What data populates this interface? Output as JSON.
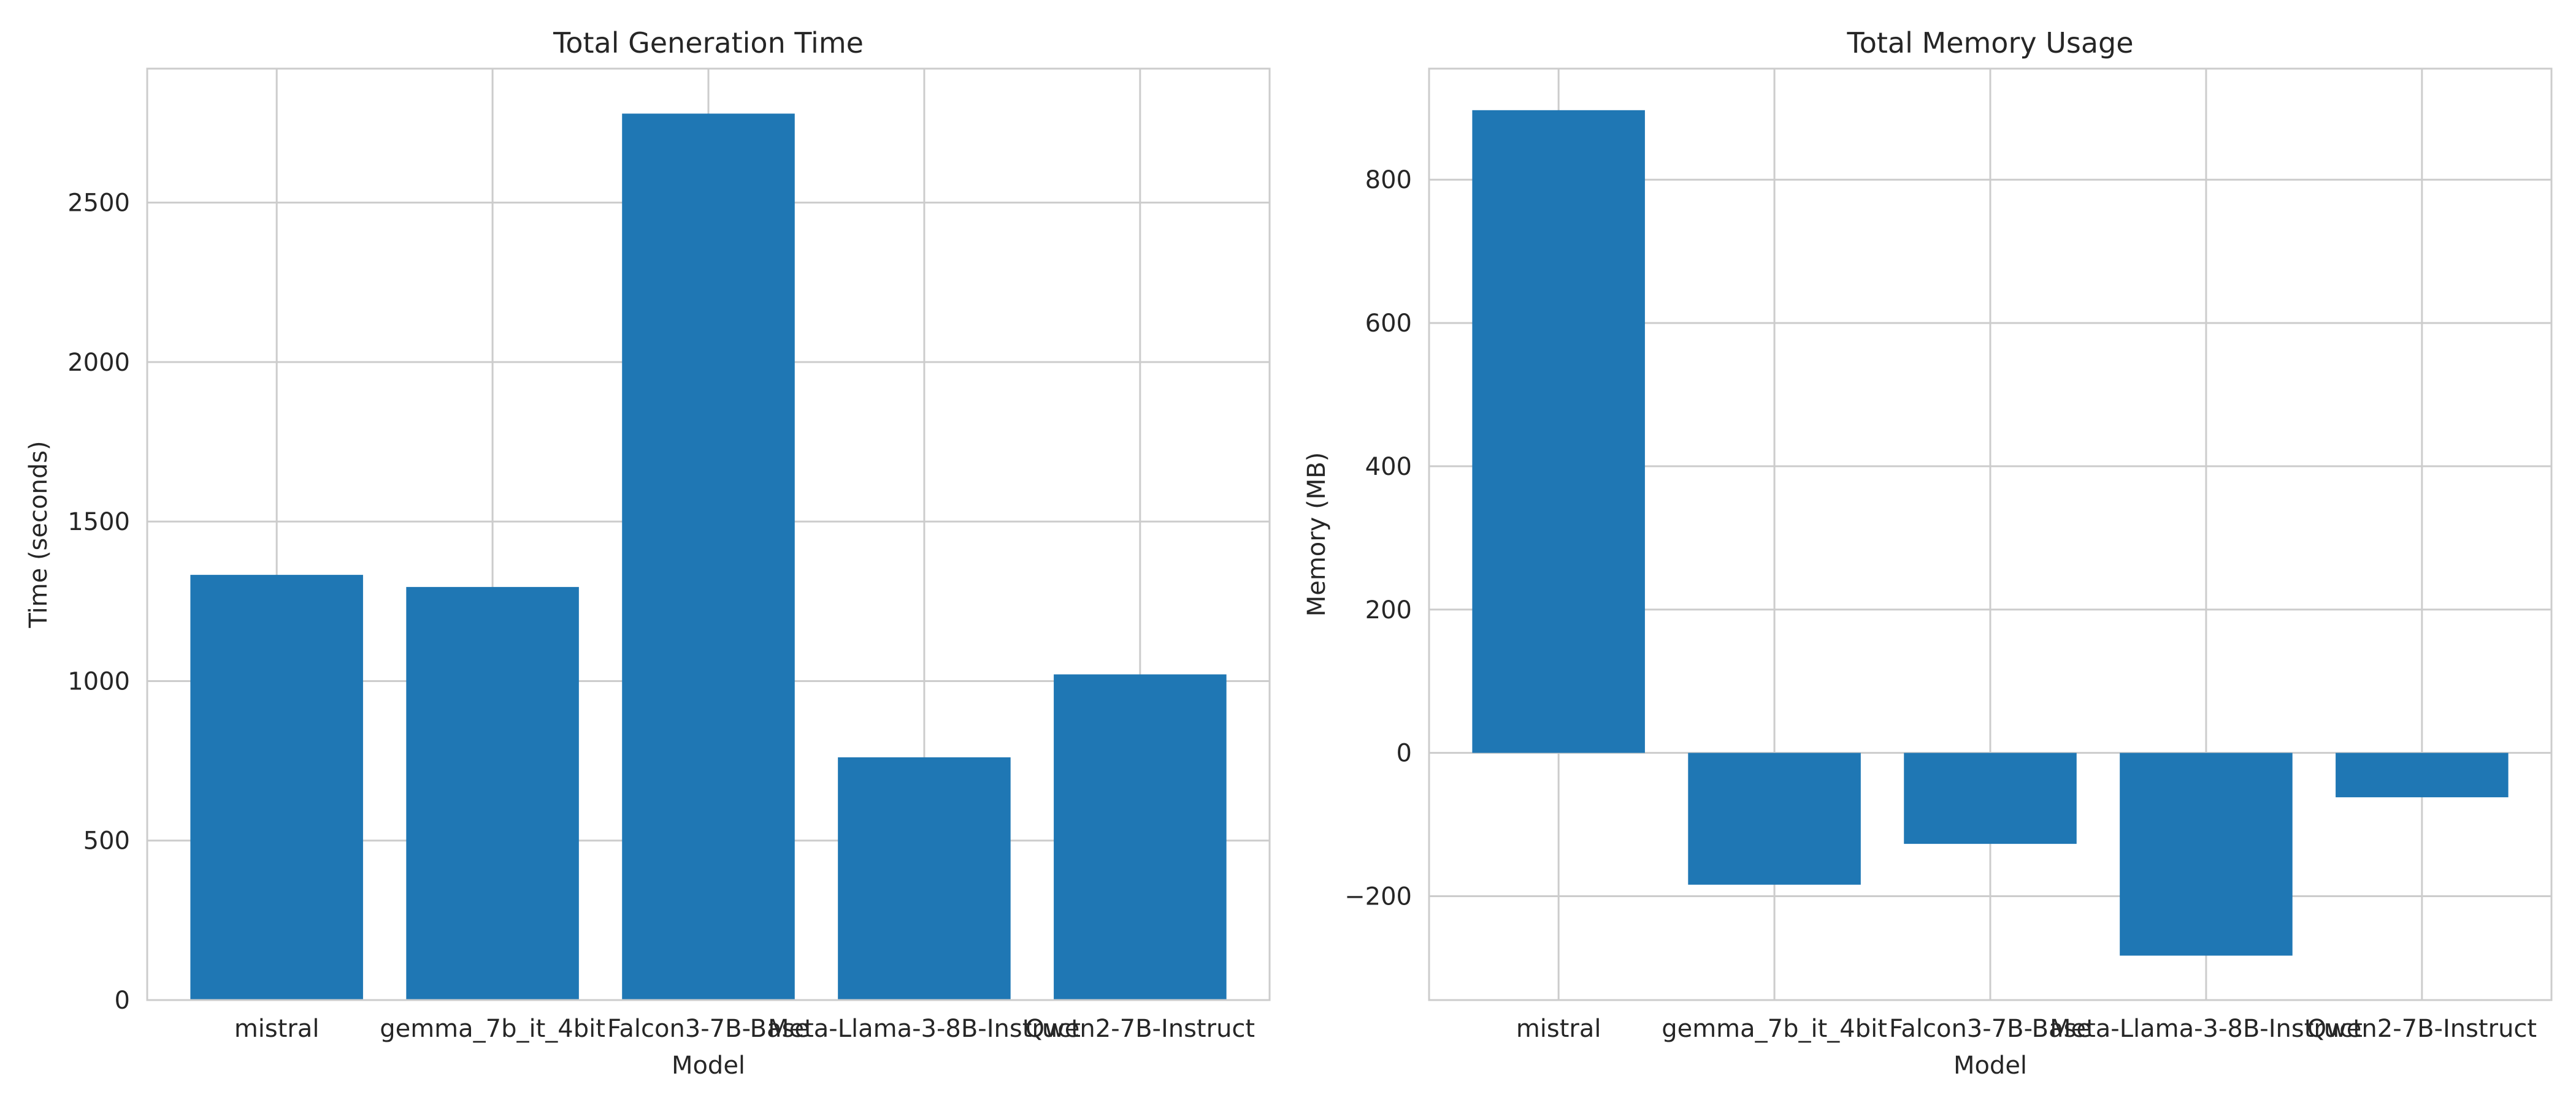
{
  "chart_data": [
    {
      "type": "bar",
      "title": "Total Generation Time",
      "xlabel": "Model",
      "ylabel": "Time (seconds)",
      "categories": [
        "mistral",
        "gemma_7b_it_4bit",
        "Falcon3-7B-Base",
        "Meta-Llama-3-8B-Instruct",
        "Qwen2-7B-Instruct"
      ],
      "values": [
        1333,
        1295,
        2779,
        761,
        1021
      ],
      "ylim": [
        0,
        2920
      ],
      "yticks": [
        0,
        500,
        1000,
        1500,
        2000,
        2500
      ],
      "grid": true,
      "legend": "none",
      "bar_color": "#1f77b4"
    },
    {
      "type": "bar",
      "title": "Total Memory Usage",
      "xlabel": "Model",
      "ylabel": "Memory (MB)",
      "categories": [
        "mistral",
        "gemma_7b_it_4bit",
        "Falcon3-7B-Base",
        "Meta-Llama-3-8B-Instruct",
        "Qwen2-7B-Instruct"
      ],
      "values": [
        897,
        -184,
        -127,
        -283,
        -62
      ],
      "ylim": [
        -345,
        955
      ],
      "yticks": [
        -200,
        0,
        200,
        400,
        600,
        800
      ],
      "grid": true,
      "legend": "none",
      "bar_color": "#1f77b4"
    }
  ]
}
